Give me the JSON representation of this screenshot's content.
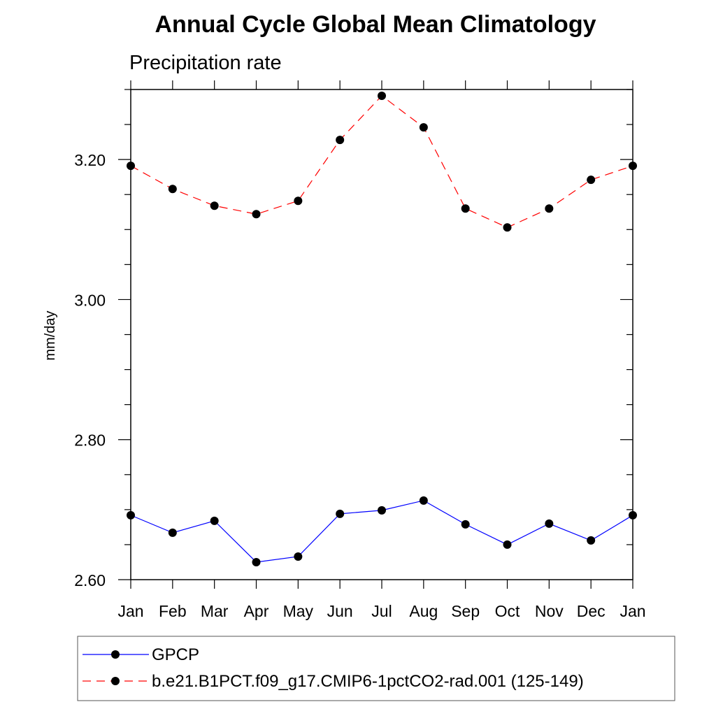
{
  "chart_data": {
    "type": "line",
    "title": "Annual Cycle Global Mean Climatology",
    "subtitle": "Precipitation rate",
    "ylabel": "mm/day",
    "xlabel": "",
    "categories": [
      "Jan",
      "Feb",
      "Mar",
      "Apr",
      "May",
      "Jun",
      "Jul",
      "Aug",
      "Sep",
      "Oct",
      "Nov",
      "Dec",
      "Jan"
    ],
    "ylim": [
      2.6,
      3.3
    ],
    "yticks": [
      2.6,
      2.8,
      3.0,
      3.2
    ],
    "ytick_labels": [
      "2.60",
      "2.80",
      "3.00",
      "3.20"
    ],
    "series": [
      {
        "name": "GPCP",
        "color": "#0000ff",
        "dash": "solid",
        "marker": "filled-circle",
        "values": [
          2.692,
          2.667,
          2.684,
          2.625,
          2.633,
          2.694,
          2.699,
          2.713,
          2.679,
          2.65,
          2.68,
          2.656,
          2.692
        ]
      },
      {
        "name": "b.e21.B1PCT.f09_g17.CMIP6-1pctCO2-rad.001 (125-149)",
        "color": "#ff0000",
        "dash": "dashed",
        "marker": "filled-circle",
        "values": [
          3.191,
          3.158,
          3.134,
          3.122,
          3.141,
          3.228,
          3.291,
          3.246,
          3.13,
          3.103,
          3.13,
          3.171,
          3.191
        ]
      }
    ],
    "legend_position": "bottom",
    "grid": false
  }
}
